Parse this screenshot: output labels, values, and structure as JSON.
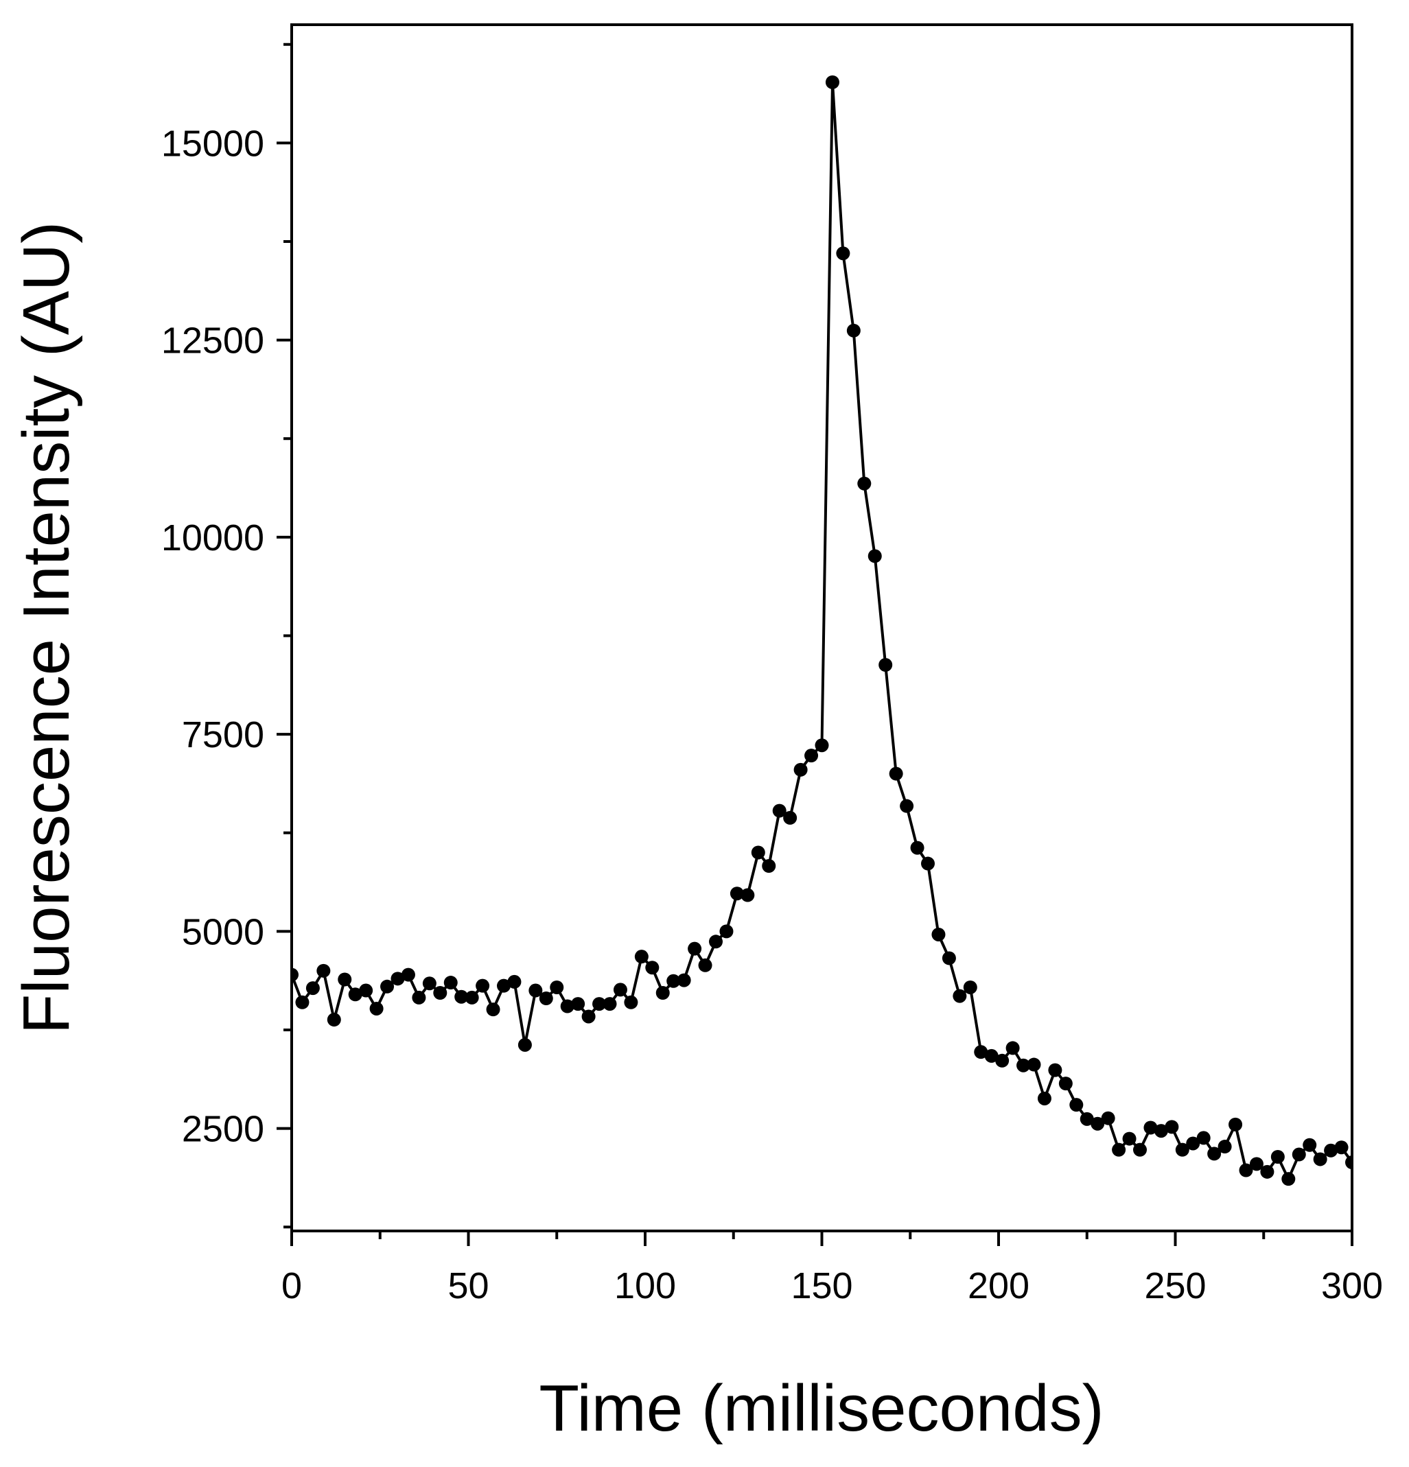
{
  "chart_data": {
    "type": "line",
    "title": "",
    "xlabel": "Time (milliseconds)",
    "ylabel": "Fluorescence Intensity (AU)",
    "xlim": [
      0,
      300
    ],
    "ylim": [
      1200,
      16500
    ],
    "xticks": [
      0,
      50,
      100,
      150,
      200,
      250,
      300
    ],
    "yticks": [
      2500,
      5000,
      7500,
      10000,
      12500,
      15000
    ],
    "grid": false,
    "legend": "none",
    "series_color": "#000000",
    "marker": "circle",
    "x": [
      0,
      3,
      6,
      9,
      12,
      15,
      18,
      21,
      24,
      27,
      30,
      33,
      36,
      39,
      42,
      45,
      48,
      51,
      54,
      57,
      60,
      63,
      66,
      69,
      72,
      75,
      78,
      81,
      84,
      87,
      90,
      93,
      96,
      99,
      102,
      105,
      108,
      111,
      114,
      117,
      120,
      123,
      126,
      129,
      132,
      135,
      138,
      141,
      144,
      147,
      150,
      153,
      156,
      159,
      162,
      165,
      168,
      171,
      174,
      177,
      180,
      183,
      186,
      189,
      192,
      195,
      198,
      201,
      204,
      207,
      210,
      213,
      216,
      219,
      222,
      225,
      228,
      231,
      234,
      237,
      240,
      243,
      246,
      249,
      252,
      255,
      258,
      261,
      264,
      267,
      270,
      273,
      276,
      279,
      282,
      285,
      288,
      291,
      294,
      297,
      300
    ],
    "y": [
      4450,
      4100,
      4280,
      4500,
      3880,
      4390,
      4200,
      4250,
      4020,
      4300,
      4400,
      4450,
      4160,
      4340,
      4220,
      4350,
      4170,
      4160,
      4310,
      4010,
      4310,
      4360,
      3560,
      4250,
      4150,
      4290,
      4050,
      4080,
      3920,
      4080,
      4080,
      4260,
      4100,
      4680,
      4540,
      4220,
      4370,
      4380,
      4780,
      4570,
      4870,
      5000,
      5480,
      5460,
      6000,
      5830,
      6530,
      6440,
      7050,
      7230,
      7360,
      15770,
      13600,
      12620,
      10680,
      9760,
      8380,
      7000,
      6590,
      6060,
      5860,
      4960,
      4660,
      4180,
      4290,
      3470,
      3420,
      3360,
      3520,
      3300,
      3310,
      2880,
      3240,
      3070,
      2800,
      2620,
      2560,
      2630,
      2230,
      2370,
      2230,
      2510,
      2470,
      2520,
      2230,
      2310,
      2380,
      2180,
      2270,
      2550,
      1970,
      2050,
      1950,
      2140,
      1860,
      2170,
      2290,
      2110,
      2220,
      2260,
      2070
    ]
  }
}
